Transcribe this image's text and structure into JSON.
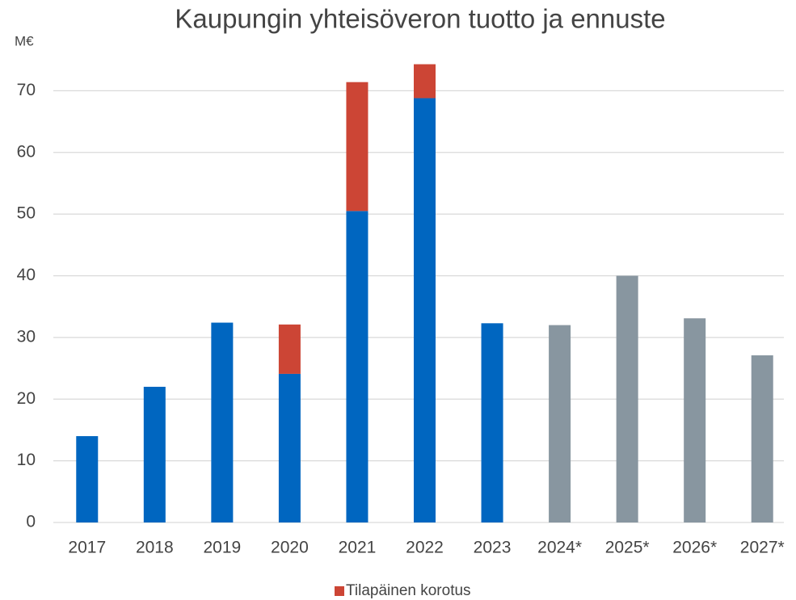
{
  "chart_data": {
    "type": "stacked_bar",
    "title": "Kaupungin yhteisöveron tuotto ja ennuste",
    "y_label": "M€",
    "categories": [
      "2017",
      "2018",
      "2019",
      "2020",
      "2021",
      "2022",
      "2023",
      "2024*",
      "2025*",
      "2026*",
      "2027*"
    ],
    "series": [
      {
        "colors": [
          "#0066c0",
          "#0066c0",
          "#0066c0",
          "#0066c0",
          "#0066c0",
          "#0066c0",
          "#0066c0",
          "#8896a0",
          "#8896a0",
          "#8896a0",
          "#8896a0"
        ],
        "values": [
          14.0,
          22.0,
          32.4,
          24.1,
          50.5,
          68.8,
          32.3,
          32.0,
          40.0,
          33.1,
          27.1
        ]
      },
      {
        "name": "Tilapäinen korotus",
        "color": "#cc4535",
        "values": [
          null,
          null,
          null,
          8.0,
          20.9,
          5.5,
          null,
          null,
          null,
          null,
          null
        ]
      }
    ],
    "ylim": [
      0,
      80
    ],
    "yticks": [
      0,
      10,
      20,
      30,
      40,
      50,
      60,
      70
    ],
    "grid": true,
    "legend": "bottom"
  }
}
